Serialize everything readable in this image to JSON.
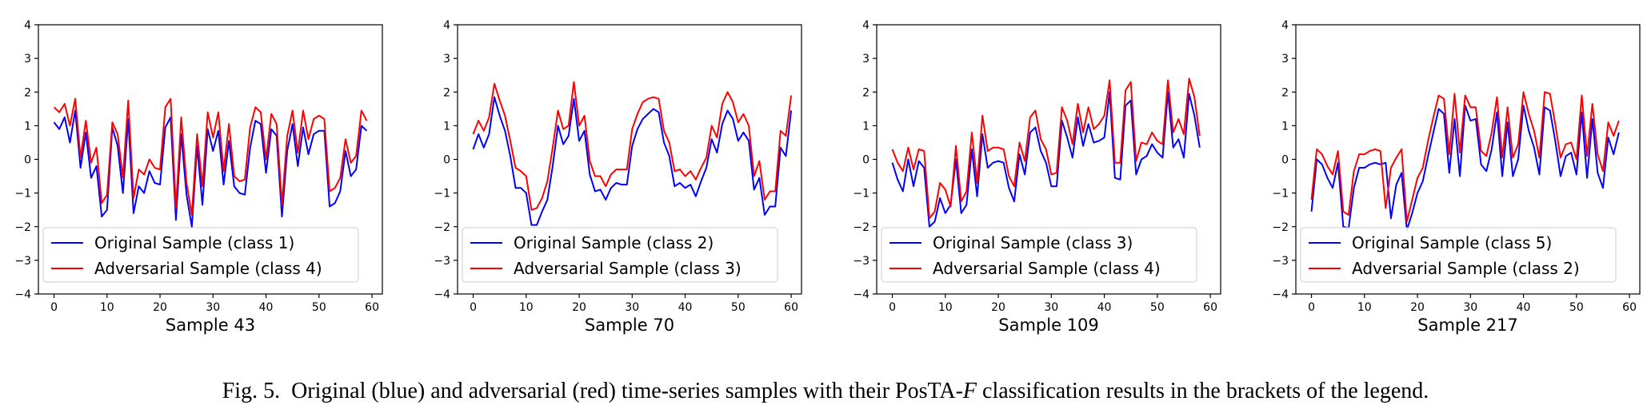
{
  "caption": {
    "label": "Fig. 5.",
    "text_before": "Original (blue) and adversarial (red) time-series samples with their PosTA-",
    "italic": "F",
    "text_after": " classification results in the brackets of the legend."
  },
  "colors": {
    "original": "#0000ff",
    "adversarial": "#ff0000",
    "axis": "#000000",
    "legend_border": "#cccccc"
  },
  "chart_data": [
    {
      "type": "line",
      "xlabel": "Sample 43",
      "xlim": [
        -2.95,
        61.95
      ],
      "ylim": [
        -4,
        4
      ],
      "xticks": [
        0,
        10,
        20,
        30,
        40,
        50,
        60
      ],
      "yticks": [
        -4,
        -3,
        -2,
        -1,
        0,
        1,
        2,
        3,
        4
      ],
      "legend_position": "lower-left",
      "series": [
        {
          "name": "Original Sample (class 1)",
          "color": "#0000ff",
          "values": [
            1.1,
            0.9,
            1.25,
            0.5,
            1.45,
            -0.25,
            0.8,
            -0.55,
            -0.2,
            -1.7,
            -1.5,
            0.95,
            0.4,
            -1.0,
            1.2,
            -1.6,
            -0.8,
            -1.0,
            -0.35,
            -0.7,
            -0.75,
            0.95,
            1.25,
            -1.8,
            0.75,
            -1.05,
            -2.0,
            0.4,
            -1.35,
            0.9,
            0.25,
            0.85,
            -0.75,
            0.55,
            -0.8,
            -1.0,
            -1.05,
            0.35,
            1.15,
            1.05,
            -0.4,
            0.9,
            0.7,
            -1.7,
            0.25,
            1.05,
            -0.2,
            0.95,
            0.15,
            0.75,
            0.85,
            0.85,
            -1.4,
            -1.3,
            -0.95,
            0.25,
            -0.5,
            -0.3,
            1.0,
            0.85
          ]
        },
        {
          "name": "Adversarial Sample (class 4)",
          "color": "#ff0000",
          "values": [
            1.55,
            1.4,
            1.65,
            1.0,
            1.8,
            0.05,
            1.15,
            -0.1,
            0.35,
            -1.3,
            -1.05,
            1.1,
            0.75,
            -0.55,
            1.75,
            -1.15,
            -0.3,
            -0.45,
            0.0,
            -0.25,
            -0.3,
            1.55,
            1.8,
            -1.45,
            1.25,
            -0.7,
            -1.65,
            0.75,
            -0.8,
            1.4,
            0.65,
            1.4,
            -0.35,
            1.05,
            -0.5,
            -0.65,
            -0.6,
            0.95,
            1.55,
            1.4,
            0.0,
            1.35,
            1.05,
            -1.35,
            0.7,
            1.45,
            0.2,
            1.45,
            0.6,
            1.2,
            1.3,
            1.2,
            -0.95,
            -0.85,
            -0.55,
            0.6,
            -0.1,
            0.1,
            1.45,
            1.15
          ]
        }
      ]
    },
    {
      "type": "line",
      "xlabel": "Sample 70",
      "xlim": [
        -2.95,
        61.95
      ],
      "ylim": [
        -4,
        4
      ],
      "xticks": [
        0,
        10,
        20,
        30,
        40,
        50,
        60
      ],
      "yticks": [
        -4,
        -3,
        -2,
        -1,
        0,
        1,
        2,
        3,
        4
      ],
      "legend_position": "lower-left",
      "series": [
        {
          "name": "Original Sample (class 2)",
          "color": "#0000ff",
          "values": [
            0.3,
            0.75,
            0.35,
            0.75,
            1.85,
            1.3,
            0.85,
            0.1,
            -0.85,
            -0.85,
            -1.0,
            -1.95,
            -1.95,
            -1.55,
            -1.2,
            -0.2,
            1.0,
            0.45,
            0.7,
            1.8,
            0.55,
            0.85,
            -0.45,
            -0.95,
            -0.9,
            -1.2,
            -0.85,
            -0.7,
            -0.75,
            -0.75,
            0.4,
            0.9,
            1.2,
            1.35,
            1.5,
            1.4,
            0.5,
            0.1,
            -0.8,
            -0.7,
            -0.85,
            -0.75,
            -1.1,
            -0.65,
            -0.25,
            0.6,
            0.2,
            1.05,
            1.45,
            1.2,
            0.55,
            0.8,
            0.55,
            -0.9,
            -0.55,
            -1.65,
            -1.4,
            -1.4,
            0.35,
            0.1,
            1.45
          ]
        },
        {
          "name": "Adversarial Sample (class 3)",
          "color": "#ff0000",
          "values": [
            0.75,
            1.15,
            0.85,
            1.25,
            2.25,
            1.75,
            1.3,
            0.55,
            -0.25,
            -0.35,
            -0.5,
            -1.5,
            -1.45,
            -1.15,
            -0.65,
            0.35,
            1.45,
            0.9,
            1.0,
            2.3,
            1.0,
            1.3,
            -0.05,
            -0.5,
            -0.5,
            -0.8,
            -0.45,
            -0.3,
            -0.3,
            -0.3,
            0.9,
            1.35,
            1.7,
            1.8,
            1.85,
            1.8,
            0.85,
            0.5,
            -0.35,
            -0.3,
            -0.5,
            -0.35,
            -0.6,
            -0.25,
            0.05,
            1.0,
            0.65,
            1.65,
            2.0,
            1.7,
            1.1,
            1.35,
            1.0,
            -0.5,
            -0.05,
            -1.2,
            -0.95,
            -0.95,
            0.85,
            0.7,
            1.9
          ]
        }
      ]
    },
    {
      "type": "line",
      "xlabel": "Sample 109",
      "xlim": [
        -2.95,
        61.95
      ],
      "ylim": [
        -4,
        4
      ],
      "xticks": [
        0,
        10,
        20,
        30,
        40,
        50,
        60
      ],
      "yticks": [
        -4,
        -3,
        -2,
        -1,
        0,
        1,
        2,
        3,
        4
      ],
      "legend_position": "lower-left",
      "series": [
        {
          "name": "Original Sample (class 3)",
          "color": "#0000ff",
          "values": [
            -0.1,
            -0.6,
            -0.95,
            0.0,
            -0.8,
            -0.05,
            -0.25,
            -2.0,
            -1.85,
            -1.15,
            -1.6,
            -1.35,
            0.0,
            -1.6,
            -1.35,
            0.3,
            -1.1,
            0.75,
            -0.25,
            -0.1,
            -0.05,
            -0.1,
            -0.85,
            -1.25,
            0.15,
            -0.45,
            0.8,
            0.95,
            0.25,
            -0.1,
            -0.8,
            -0.8,
            1.15,
            0.65,
            0.05,
            1.25,
            0.4,
            1.05,
            0.5,
            0.55,
            0.65,
            2.0,
            -0.55,
            -0.6,
            1.6,
            1.75,
            -0.45,
            0.0,
            0.1,
            0.45,
            0.2,
            0.05,
            2.0,
            0.35,
            0.6,
            0.05,
            1.95,
            1.3,
            0.35
          ]
        },
        {
          "name": "Adversarial Sample (class 4)",
          "color": "#ff0000",
          "values": [
            0.3,
            -0.1,
            -0.35,
            0.35,
            -0.3,
            0.3,
            0.25,
            -1.75,
            -1.55,
            -0.7,
            -0.9,
            -1.4,
            0.4,
            -1.25,
            -0.95,
            0.8,
            -0.7,
            1.3,
            0.25,
            0.35,
            0.35,
            0.3,
            -0.5,
            -0.8,
            0.5,
            -0.05,
            1.25,
            1.45,
            0.6,
            0.3,
            -0.45,
            -0.4,
            1.55,
            1.15,
            0.45,
            1.65,
            0.8,
            1.55,
            0.9,
            1.05,
            1.3,
            2.35,
            -0.1,
            -0.1,
            2.05,
            2.3,
            -0.05,
            0.5,
            0.45,
            0.8,
            0.55,
            0.45,
            2.35,
            0.8,
            1.2,
            0.75,
            2.4,
            1.85,
            0.7
          ]
        }
      ]
    },
    {
      "type": "line",
      "xlabel": "Sample 217",
      "xlim": [
        -2.95,
        61.95
      ],
      "ylim": [
        -4,
        4
      ],
      "xticks": [
        0,
        10,
        20,
        30,
        40,
        50,
        60
      ],
      "yticks": [
        -4,
        -3,
        -2,
        -1,
        0,
        1,
        2,
        3,
        4
      ],
      "legend_position": "lower-left",
      "series": [
        {
          "name": "Original Sample (class 5)",
          "color": "#0000ff",
          "values": [
            -1.55,
            0.0,
            -0.15,
            -0.55,
            -0.85,
            -0.1,
            -2.0,
            -2.05,
            -0.85,
            -0.25,
            -0.25,
            -0.15,
            -0.1,
            -0.15,
            -0.1,
            -1.75,
            -0.75,
            -0.4,
            -2.1,
            -1.6,
            -1.0,
            -0.65,
            0.1,
            0.8,
            1.5,
            1.35,
            -0.4,
            1.2,
            -0.5,
            1.6,
            1.15,
            1.2,
            -0.15,
            -0.35,
            0.3,
            1.4,
            -0.5,
            1.1,
            -0.5,
            0.0,
            1.6,
            0.85,
            0.35,
            -0.45,
            1.55,
            1.45,
            0.55,
            -0.5,
            0.1,
            0.2,
            -0.45,
            1.4,
            -0.55,
            1.2,
            -0.4,
            -0.85,
            0.65,
            0.15,
            0.8
          ]
        },
        {
          "name": "Adversarial Sample (class 2)",
          "color": "#ff0000",
          "values": [
            -1.2,
            0.3,
            0.15,
            -0.2,
            -0.45,
            0.25,
            -1.55,
            -1.65,
            -0.35,
            0.15,
            0.15,
            0.25,
            0.3,
            0.25,
            -1.45,
            -0.25,
            0.05,
            0.3,
            -1.85,
            -1.2,
            -0.55,
            -0.25,
            0.55,
            1.25,
            1.9,
            1.8,
            0.15,
            1.95,
            0.2,
            1.9,
            1.55,
            1.55,
            0.25,
            0.1,
            0.8,
            1.85,
            0.05,
            1.55,
            0.05,
            0.45,
            2.0,
            1.35,
            0.85,
            0.05,
            2.0,
            1.95,
            1.05,
            0.05,
            0.45,
            0.5,
            0.0,
            1.9,
            0.1,
            1.65,
            0.15,
            -0.35,
            1.1,
            0.7,
            1.15
          ]
        }
      ]
    }
  ]
}
